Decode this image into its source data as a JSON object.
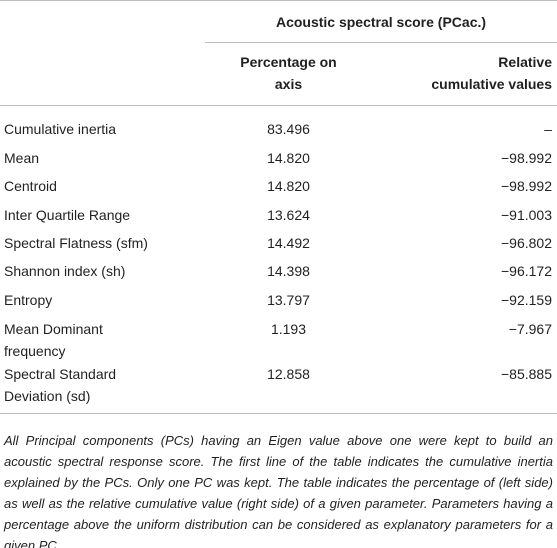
{
  "table": {
    "header": {
      "group": "Acoustic spectral score (PCac.)",
      "columns": [
        "Percentage on axis",
        "Relative cumulative values"
      ]
    },
    "rows": [
      [
        "Cumulative inertia",
        "83.496",
        "–"
      ],
      [
        "Mean",
        "14.820",
        "−98.992"
      ],
      [
        "Centroid",
        "14.820",
        "−98.992"
      ],
      [
        "Inter Quartile Range",
        "13.624",
        "−91.003"
      ],
      [
        "Spectral Flatness (sfm)",
        "14.492",
        "−96.802"
      ],
      [
        "Shannon index (sh)",
        "14.398",
        "−96.172"
      ],
      [
        "Entropy",
        "13.797",
        "−92.159"
      ],
      [
        "Mean Dominant frequency",
        "1.193",
        "−7.967"
      ],
      [
        "Spectral Standard Deviation (sd)",
        "12.858",
        "−85.885"
      ]
    ],
    "footnote": "All Principal components (PCs) having an Eigen value above one were kept to build an acoustic spectral response score. The first line of the table indicates the cumulative inertia explained by the PCs. Only one PC was kept. The table indicates the percentage of (left side) as well as the relative cumulative value (right side) of a given parameter. Parameters having a percentage above the uniform distribution can be considered as explanatory parameters for a given PC."
  }
}
